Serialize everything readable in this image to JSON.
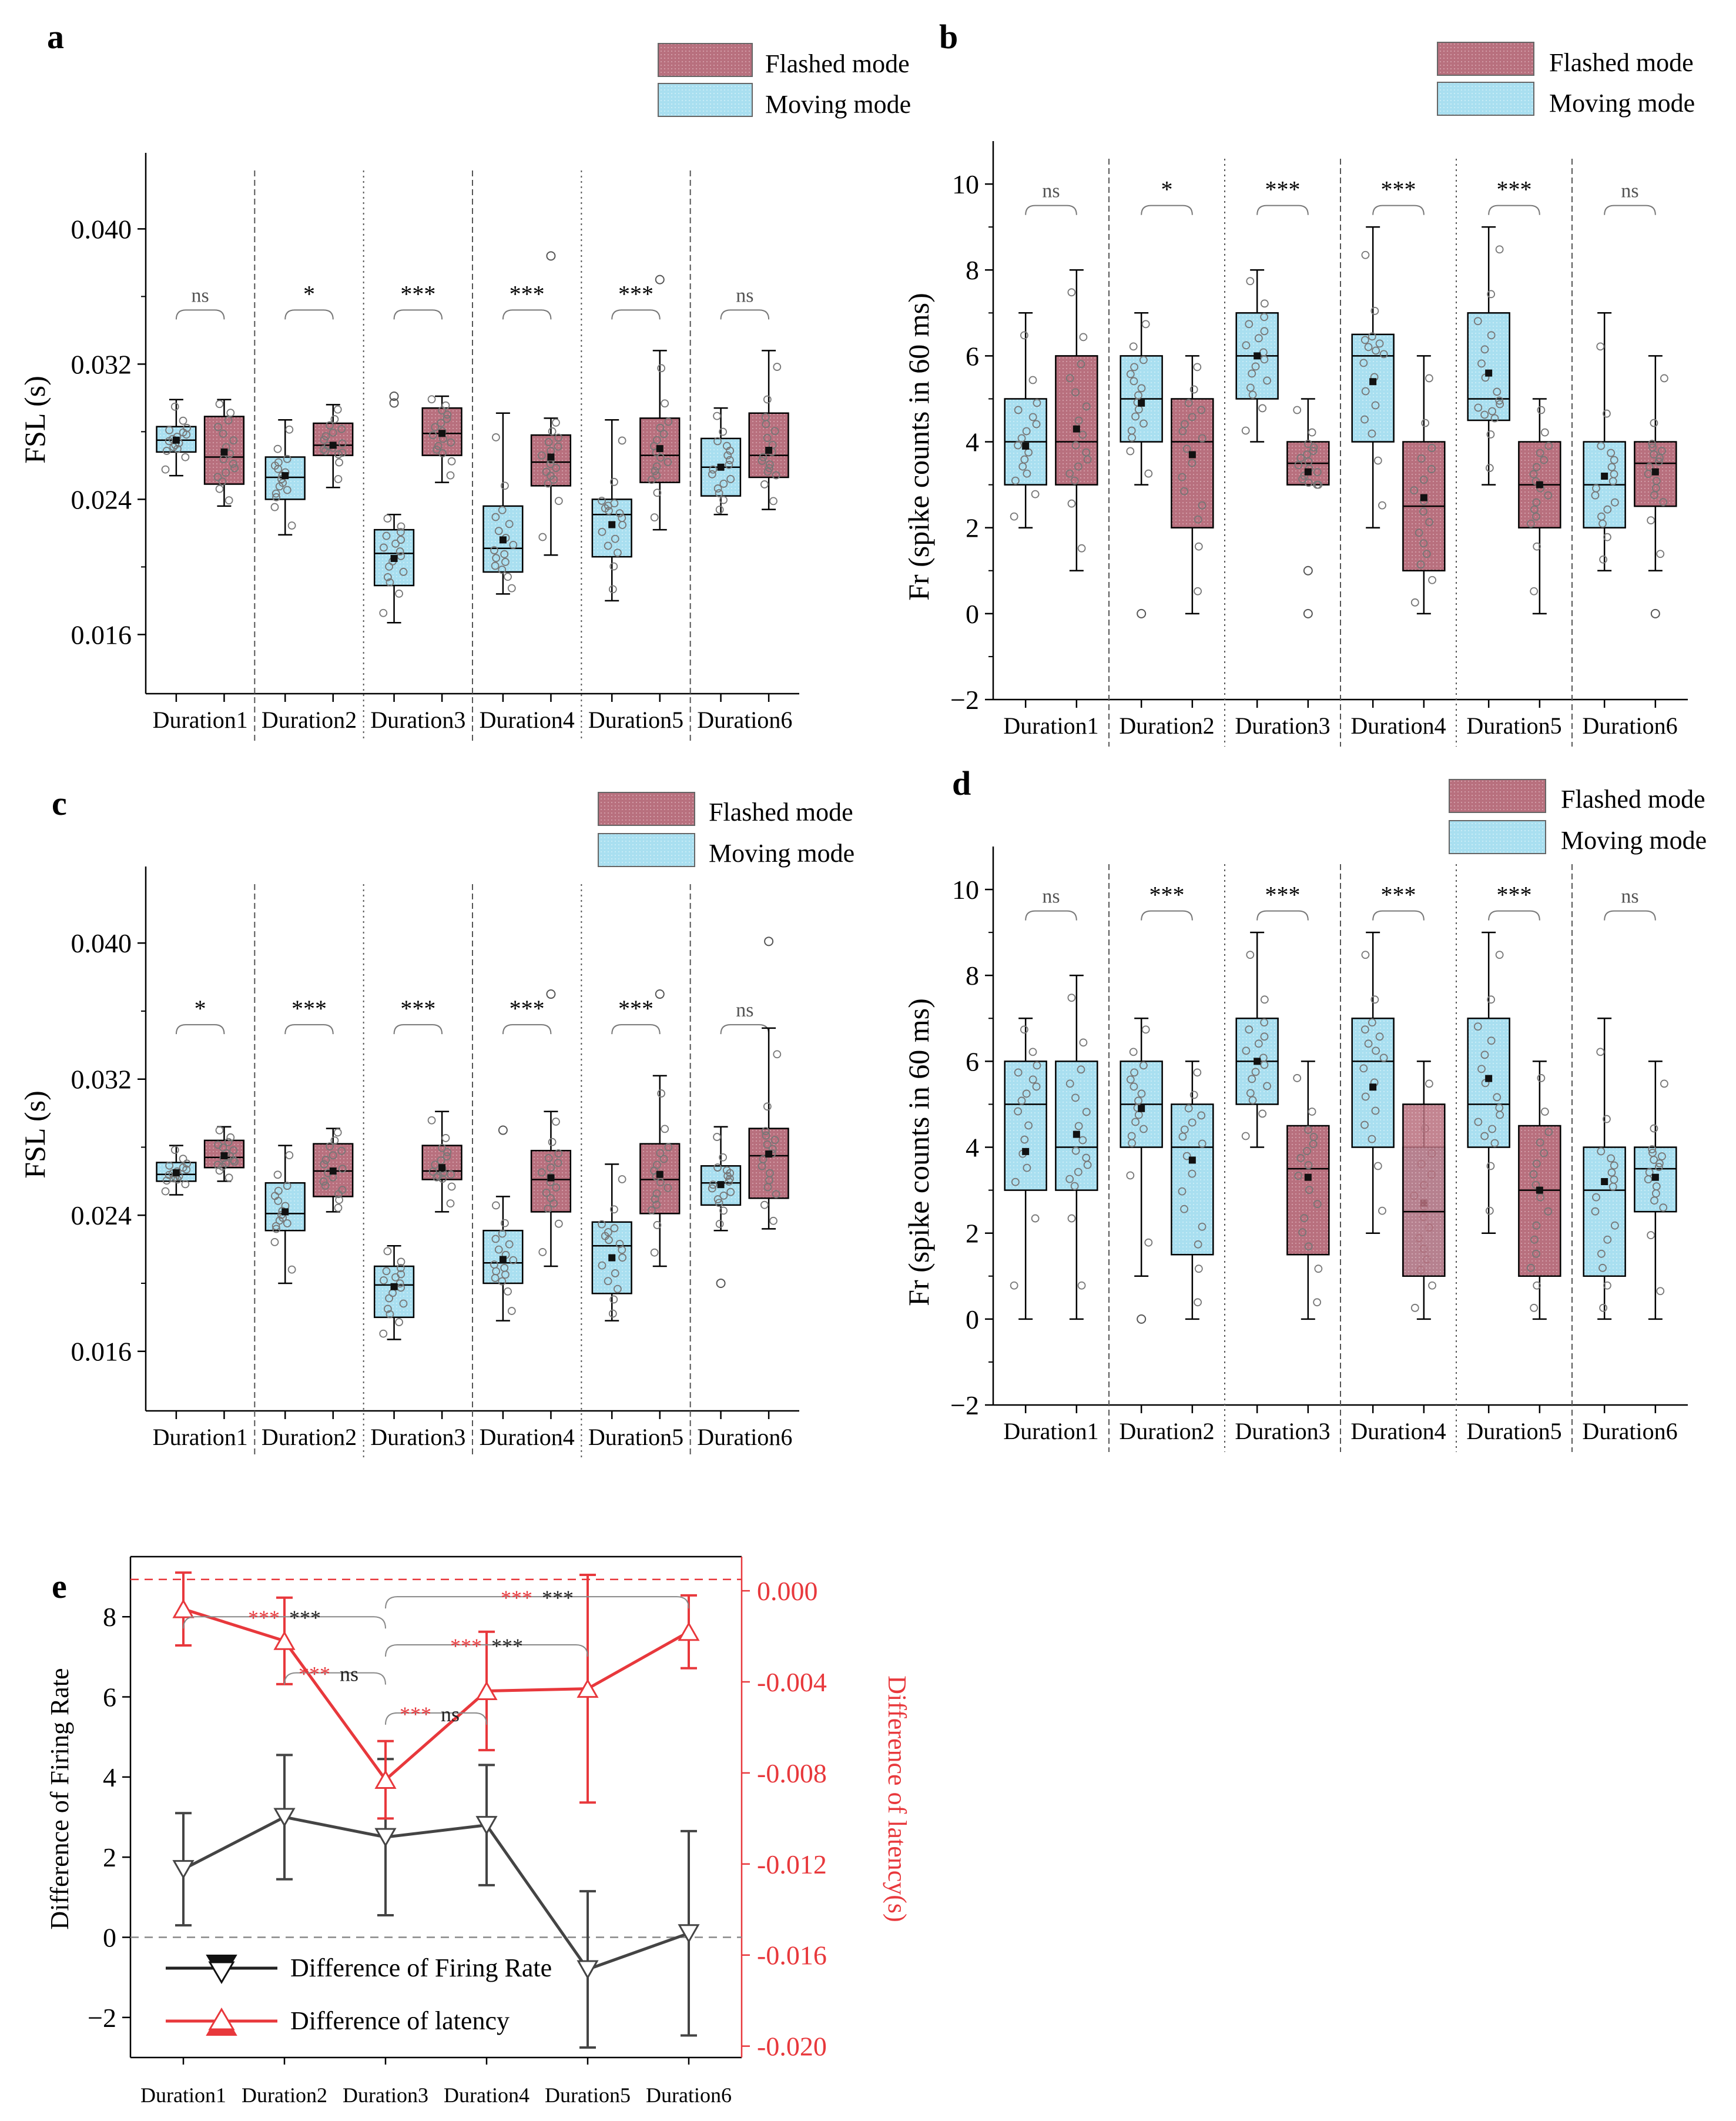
{
  "colors": {
    "flashed": "#b8707e",
    "moving": "#a9dff0",
    "line": "#222222",
    "red": "#e8383c",
    "gray_line": "#444444",
    "point": "#777777"
  },
  "legend": {
    "flashed": "Flashed mode",
    "moving": "Moving mode"
  },
  "chart_data": [
    {
      "id": "a",
      "panel_label": "a",
      "type": "box",
      "ylabel": "FSL (s)",
      "ylim": [
        0.0125,
        0.0445
      ],
      "yticks": [
        0.016,
        0.024,
        0.032,
        0.04
      ],
      "ytick_labels": [
        "0.016",
        "0.024",
        "0.032",
        "0.040"
      ],
      "groups": [
        "Duration1",
        "Duration2",
        "Duration3",
        "Duration4",
        "Duration5",
        "Duration6"
      ],
      "bracket_y": 0.0352,
      "significance": [
        "ns",
        "*",
        "***",
        "***",
        "***",
        "ns"
      ],
      "boxes": [
        {
          "mode": "moving",
          "min": 0.0254,
          "q1": 0.0268,
          "median": 0.0275,
          "q3": 0.0283,
          "max": 0.0299,
          "mean": 0.0275
        },
        {
          "mode": "flashed",
          "min": 0.0236,
          "q1": 0.0249,
          "median": 0.0265,
          "q3": 0.0289,
          "max": 0.0299,
          "mean": 0.0268
        },
        {
          "mode": "moving",
          "min": 0.0219,
          "q1": 0.024,
          "median": 0.0253,
          "q3": 0.0265,
          "max": 0.0287,
          "mean": 0.0254
        },
        {
          "mode": "flashed",
          "min": 0.0247,
          "q1": 0.0266,
          "median": 0.0272,
          "q3": 0.0285,
          "max": 0.0296,
          "mean": 0.0272
        },
        {
          "mode": "moving",
          "min": 0.0167,
          "q1": 0.0189,
          "median": 0.0208,
          "q3": 0.0222,
          "max": 0.0231,
          "mean": 0.0205
        },
        {
          "mode": "flashed",
          "min": 0.025,
          "q1": 0.0266,
          "median": 0.0279,
          "q3": 0.0294,
          "max": 0.0301,
          "mean": 0.0279
        },
        {
          "mode": "moving",
          "min": 0.0184,
          "q1": 0.0197,
          "median": 0.0211,
          "q3": 0.0236,
          "max": 0.0291,
          "mean": 0.0216
        },
        {
          "mode": "flashed",
          "min": 0.0207,
          "q1": 0.0248,
          "median": 0.0262,
          "q3": 0.0278,
          "max": 0.0288,
          "mean": 0.0265
        },
        {
          "mode": "moving",
          "min": 0.018,
          "q1": 0.0206,
          "median": 0.0231,
          "q3": 0.024,
          "max": 0.0287,
          "mean": 0.0225
        },
        {
          "mode": "flashed",
          "min": 0.0222,
          "q1": 0.025,
          "median": 0.0266,
          "q3": 0.0288,
          "max": 0.0328,
          "mean": 0.027
        },
        {
          "mode": "moving",
          "min": 0.0231,
          "q1": 0.0242,
          "median": 0.0259,
          "q3": 0.0276,
          "max": 0.0294,
          "mean": 0.0259
        },
        {
          "mode": "flashed",
          "min": 0.0234,
          "q1": 0.0253,
          "median": 0.0266,
          "q3": 0.0291,
          "max": 0.0328,
          "mean": 0.0269
        }
      ],
      "outliers": [
        {
          "box": 4,
          "values": [
            0.0297,
            0.0301
          ]
        },
        {
          "box": 7,
          "values": [
            0.0384
          ]
        },
        {
          "box": 9,
          "values": [
            0.037
          ]
        }
      ]
    },
    {
      "id": "b",
      "panel_label": "b",
      "type": "box",
      "ylabel": "Fr (spike counts in 60 ms)",
      "ylim": [
        -2.0,
        11.0
      ],
      "yticks": [
        -2,
        0,
        2,
        4,
        6,
        8,
        10
      ],
      "ytick_labels": [
        "−2",
        "0",
        "2",
        "4",
        "6",
        "8",
        "10"
      ],
      "groups": [
        "Duration1",
        "Duration2",
        "Duration3",
        "Duration4",
        "Duration5",
        "Duration6"
      ],
      "bracket_y": 9.5,
      "significance": [
        "ns",
        "*",
        "***",
        "***",
        "***",
        "ns"
      ],
      "boxes": [
        {
          "mode": "moving",
          "min": 2,
          "q1": 3,
          "median": 4,
          "q3": 5,
          "max": 7,
          "mean": 3.9
        },
        {
          "mode": "flashed",
          "min": 1,
          "q1": 3,
          "median": 4,
          "q3": 6,
          "max": 8,
          "mean": 4.3
        },
        {
          "mode": "moving",
          "min": 3,
          "q1": 4,
          "median": 5,
          "q3": 6,
          "max": 7,
          "mean": 4.9
        },
        {
          "mode": "flashed",
          "min": 0,
          "q1": 2,
          "median": 4,
          "q3": 5,
          "max": 6,
          "mean": 3.7
        },
        {
          "mode": "moving",
          "min": 4,
          "q1": 5,
          "median": 6,
          "q3": 7,
          "max": 8,
          "mean": 6.0
        },
        {
          "mode": "flashed",
          "min": 3,
          "q1": 3,
          "median": 3.5,
          "q3": 4,
          "max": 5,
          "mean": 3.3
        },
        {
          "mode": "moving",
          "min": 2,
          "q1": 4,
          "median": 6,
          "q3": 6.5,
          "max": 9,
          "mean": 5.4
        },
        {
          "mode": "flashed",
          "min": 0,
          "q1": 1,
          "median": 2.5,
          "q3": 4,
          "max": 6,
          "mean": 2.7
        },
        {
          "mode": "moving",
          "min": 3,
          "q1": 4.5,
          "median": 5,
          "q3": 7,
          "max": 9,
          "mean": 5.6
        },
        {
          "mode": "flashed",
          "min": 0,
          "q1": 2,
          "median": 3,
          "q3": 4,
          "max": 5,
          "mean": 3.0
        },
        {
          "mode": "moving",
          "min": 1,
          "q1": 2,
          "median": 3,
          "q3": 4,
          "max": 7,
          "mean": 3.2
        },
        {
          "mode": "flashed",
          "min": 1,
          "q1": 2.5,
          "median": 3.5,
          "q3": 4,
          "max": 6,
          "mean": 3.3
        }
      ],
      "outliers": [
        {
          "box": 2,
          "values": [
            0
          ]
        },
        {
          "box": 5,
          "values": [
            0,
            1
          ]
        },
        {
          "box": 11,
          "values": [
            0
          ]
        }
      ]
    },
    {
      "id": "c",
      "panel_label": "c",
      "type": "box",
      "ylabel": "FSL (s)",
      "ylim": [
        0.0125,
        0.0445
      ],
      "yticks": [
        0.016,
        0.024,
        0.032,
        0.04
      ],
      "ytick_labels": [
        "0.016",
        "0.024",
        "0.032",
        "0.040"
      ],
      "groups": [
        "Duration1",
        "Duration2",
        "Duration3",
        "Duration4",
        "Duration5",
        "Duration6"
      ],
      "bracket_y": 0.0352,
      "significance": [
        "*",
        "***",
        "***",
        "***",
        "***",
        "ns"
      ],
      "boxes": [
        {
          "mode": "moving",
          "min": 0.0252,
          "q1": 0.026,
          "median": 0.0264,
          "q3": 0.0271,
          "max": 0.0281,
          "mean": 0.0265
        },
        {
          "mode": "flashed",
          "min": 0.026,
          "q1": 0.0268,
          "median": 0.0274,
          "q3": 0.0284,
          "max": 0.0292,
          "mean": 0.0275
        },
        {
          "mode": "moving",
          "min": 0.02,
          "q1": 0.0231,
          "median": 0.0241,
          "q3": 0.0259,
          "max": 0.0281,
          "mean": 0.0242
        },
        {
          "mode": "flashed",
          "min": 0.0242,
          "q1": 0.0251,
          "median": 0.0266,
          "q3": 0.0282,
          "max": 0.0291,
          "mean": 0.0266
        },
        {
          "mode": "moving",
          "min": 0.0167,
          "q1": 0.018,
          "median": 0.0199,
          "q3": 0.021,
          "max": 0.0222,
          "mean": 0.0198
        },
        {
          "mode": "flashed",
          "min": 0.0242,
          "q1": 0.0261,
          "median": 0.0266,
          "q3": 0.0281,
          "max": 0.0301,
          "mean": 0.0268
        },
        {
          "mode": "moving",
          "min": 0.0178,
          "q1": 0.02,
          "median": 0.0212,
          "q3": 0.0231,
          "max": 0.0251,
          "mean": 0.0214
        },
        {
          "mode": "flashed",
          "min": 0.021,
          "q1": 0.0242,
          "median": 0.0261,
          "q3": 0.0278,
          "max": 0.0301,
          "mean": 0.0262
        },
        {
          "mode": "moving",
          "min": 0.0178,
          "q1": 0.0194,
          "median": 0.0222,
          "q3": 0.0236,
          "max": 0.027,
          "mean": 0.0215
        },
        {
          "mode": "flashed",
          "min": 0.021,
          "q1": 0.0241,
          "median": 0.0261,
          "q3": 0.0282,
          "max": 0.0322,
          "mean": 0.0264
        },
        {
          "mode": "moving",
          "min": 0.0231,
          "q1": 0.0246,
          "median": 0.0259,
          "q3": 0.0269,
          "max": 0.0292,
          "mean": 0.0258
        },
        {
          "mode": "flashed",
          "min": 0.0232,
          "q1": 0.025,
          "median": 0.0275,
          "q3": 0.0291,
          "max": 0.035,
          "mean": 0.0276
        }
      ],
      "outliers": [
        {
          "box": 6,
          "values": [
            0.029
          ]
        },
        {
          "box": 7,
          "values": [
            0.037
          ]
        },
        {
          "box": 9,
          "values": [
            0.037
          ]
        },
        {
          "box": 10,
          "values": [
            0.02
          ]
        },
        {
          "box": 11,
          "values": [
            0.0401
          ]
        }
      ]
    },
    {
      "id": "d",
      "panel_label": "d",
      "type": "box",
      "ylabel": "Fr (spike counts in 60 ms)",
      "ylim": [
        -2.0,
        11.0
      ],
      "yticks": [
        -2,
        0,
        2,
        4,
        6,
        8,
        10
      ],
      "ytick_labels": [
        "−2",
        "0",
        "2",
        "4",
        "6",
        "8",
        "10"
      ],
      "groups": [
        "Duration1",
        "Duration2",
        "Duration3",
        "Duration4",
        "Duration5",
        "Duration6"
      ],
      "bracket_y": 9.5,
      "significance": [
        "ns",
        "***",
        "***",
        "***",
        "***",
        "ns"
      ],
      "boxes": [
        {
          "mode": "moving",
          "min": 0,
          "q1": 3,
          "median": 5,
          "q3": 6,
          "max": 7,
          "mean": 3.9
        },
        {
          "mode": "moving",
          "min": 0,
          "q1": 3,
          "median": 4,
          "q3": 6,
          "max": 8,
          "mean": 4.3
        },
        {
          "mode": "moving",
          "min": 1,
          "q1": 4,
          "median": 5,
          "q3": 6,
          "max": 7,
          "mean": 4.9
        },
        {
          "mode": "moving",
          "min": 0,
          "q1": 1.5,
          "median": 4,
          "q3": 5,
          "max": 6,
          "mean": 3.7
        },
        {
          "mode": "moving",
          "min": 4,
          "q1": 5,
          "median": 6,
          "q3": 7,
          "max": 9,
          "mean": 6.0
        },
        {
          "mode": "flashed",
          "min": 0,
          "q1": 1.5,
          "median": 3.5,
          "q3": 4.5,
          "max": 6,
          "mean": 3.3
        },
        {
          "mode": "moving",
          "min": 2,
          "q1": 4,
          "median": 6,
          "q3": 7,
          "max": 9,
          "mean": 5.4
        },
        {
          "mode": "moving",
          "min": 0,
          "q1": 1,
          "median": 2.5,
          "q3": 4,
          "max": 6,
          "mean": 2.7
        },
        {
          "mode": "moving",
          "min": 2,
          "q1": 4,
          "median": 5,
          "q3": 7,
          "max": 9,
          "mean": 5.6
        },
        {
          "mode": "flashed",
          "min": 0,
          "q1": 1,
          "median": 3,
          "q3": 4.5,
          "max": 6,
          "mean": 3.0
        },
        {
          "mode": "moving",
          "min": 0,
          "q1": 1,
          "median": 3,
          "q3": 4,
          "max": 7,
          "mean": 3.2
        },
        {
          "mode": "moving",
          "min": 0,
          "q1": 2.5,
          "median": 3.5,
          "q3": 4,
          "max": 6,
          "mean": 3.3
        }
      ],
      "overlays": [
        {
          "box": 7,
          "mode": "flashed",
          "from": 1,
          "to": 5
        }
      ],
      "outliers": [
        {
          "box": 2,
          "values": [
            0
          ]
        }
      ]
    },
    {
      "id": "e",
      "panel_label": "e",
      "type": "line",
      "ylabel": "Difference of Firing Rate",
      "ylabel_right": "Difference of latency(s)",
      "categories": [
        "Duration1",
        "Duration2",
        "Duration3",
        "Duration4",
        "Duration5",
        "Duration6"
      ],
      "ylim": [
        -3.0,
        9.5
      ],
      "yticks": [
        -2,
        0,
        2,
        4,
        6,
        8
      ],
      "ytick_labels": [
        "−2",
        "0",
        "2",
        "4",
        "6",
        "8"
      ],
      "ylim_right": [
        -0.0205,
        0.0015
      ],
      "yticks_right": [
        -0.02,
        -0.016,
        -0.012,
        -0.008,
        -0.004,
        0.0
      ],
      "ytick_labels_right": [
        "-0.020",
        "-0.016",
        "-0.012",
        "-0.008",
        "-0.004",
        "0.000"
      ],
      "ref_line_left": 0,
      "ref_line_right": 0.0005,
      "series": [
        {
          "name": "Difference of Firing Rate",
          "axis": "left",
          "values": [
            1.7,
            3.0,
            2.5,
            2.8,
            -0.8,
            0.1
          ],
          "err": [
            1.4,
            1.55,
            1.95,
            1.5,
            1.95,
            2.55
          ]
        },
        {
          "name": "Difference of latency",
          "axis": "right",
          "values": [
            -0.0008,
            -0.0022,
            -0.0083,
            -0.0044,
            -0.0043,
            -0.0018
          ],
          "err": [
            0.0016,
            0.0019,
            0.0017,
            0.0026,
            0.005,
            0.0016
          ]
        }
      ],
      "brackets": [
        {
          "from": 0,
          "to": 2,
          "y": 8.0,
          "red": "***",
          "black": "***"
        },
        {
          "from": 1,
          "to": 2,
          "y": 6.6,
          "red": "***",
          "black": "ns"
        },
        {
          "from": 2,
          "to": 5,
          "y": 8.5,
          "red": "***",
          "black": "***"
        },
        {
          "from": 2,
          "to": 4,
          "y": 7.3,
          "red": "***",
          "black": "***"
        },
        {
          "from": 2,
          "to": 3,
          "y": 5.6,
          "red": "***",
          "black": "ns"
        }
      ],
      "legend": [
        "Difference of Firing Rate",
        "Difference of latency"
      ]
    }
  ]
}
